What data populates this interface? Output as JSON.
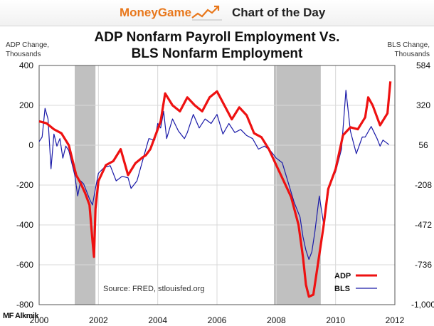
{
  "header": {
    "brand": "MoneyGame",
    "brand_logo_icon": "rising-chart-line-icon",
    "section": "Chart of the Day"
  },
  "watermark": "MF Alkmik",
  "chart_data": {
    "type": "line",
    "title_line1": "ADP Nonfarm Payroll Employment Vs.",
    "title_line2": "BLS Nonfarm Employment",
    "ylabel_left": [
      "ADP Change,",
      "Thousands"
    ],
    "ylabel_right": [
      "BLS Change,",
      "Thousands"
    ],
    "source": "Source: FRED, stlouisfed.org",
    "x_range": [
      2000.0,
      2012.0
    ],
    "x_ticks": [
      "2000",
      "2002",
      "2004",
      "2006",
      "2008",
      "2010",
      "2012"
    ],
    "ylim_left": [
      -800,
      400
    ],
    "yticks_left": [
      "400",
      "200",
      "0",
      "-200",
      "-400",
      "-600",
      "-800"
    ],
    "ylim_right": [
      -1000,
      584
    ],
    "yticks_right": [
      "584",
      "320",
      "56",
      "-208",
      "-472",
      "-736",
      "-1,000"
    ],
    "grid": true,
    "legend_position": "bottom-right",
    "recessions": [
      [
        2001.2,
        2001.9
      ],
      [
        2007.92,
        2009.5
      ]
    ],
    "colors": {
      "adp": "#ee1111",
      "bls": "#1a1aa8",
      "recession": "#c0c0c0",
      "brand": "#e8771b"
    },
    "series": [
      {
        "name": "ADP",
        "axis": "left",
        "x": [
          2000.0,
          2000.25,
          2000.5,
          2000.75,
          2001.0,
          2001.25,
          2001.4,
          2001.55,
          2001.7,
          2001.8,
          2001.85,
          2001.9,
          2002.0,
          2002.25,
          2002.5,
          2002.75,
          2003.0,
          2003.25,
          2003.5,
          2003.6,
          2003.75,
          2004.0,
          2004.1,
          2004.25,
          2004.5,
          2004.75,
          2005.0,
          2005.25,
          2005.5,
          2005.75,
          2006.0,
          2006.25,
          2006.5,
          2006.75,
          2007.0,
          2007.25,
          2007.5,
          2007.75,
          2008.0,
          2008.25,
          2008.5,
          2008.75,
          2008.9,
          2009.0,
          2009.1,
          2009.25,
          2009.4,
          2009.6,
          2009.75,
          2010.0,
          2010.25,
          2010.5,
          2010.75,
          2011.0,
          2011.1,
          2011.25,
          2011.5,
          2011.75,
          2011.85
        ],
        "y": [
          120,
          110,
          80,
          60,
          0,
          -150,
          -190,
          -240,
          -300,
          -480,
          -560,
          -320,
          -180,
          -100,
          -80,
          -20,
          -150,
          -90,
          -60,
          -50,
          -20,
          80,
          120,
          260,
          200,
          170,
          240,
          200,
          170,
          240,
          270,
          200,
          130,
          190,
          150,
          60,
          40,
          -20,
          -100,
          -180,
          -260,
          -400,
          -560,
          -700,
          -760,
          -750,
          -600,
          -400,
          -220,
          -120,
          50,
          90,
          80,
          140,
          240,
          200,
          100,
          160,
          320
        ]
      },
      {
        "name": "BLS",
        "axis": "right",
        "x": [
          2000.0,
          2000.1,
          2000.2,
          2000.3,
          2000.4,
          2000.5,
          2000.6,
          2000.7,
          2000.8,
          2000.9,
          2001.0,
          2001.1,
          2001.2,
          2001.3,
          2001.4,
          2001.5,
          2001.6,
          2001.7,
          2001.8,
          2001.9,
          2002.0,
          2002.2,
          2002.4,
          2002.6,
          2002.8,
          2003.0,
          2003.1,
          2003.3,
          2003.5,
          2003.7,
          2003.9,
          2004.0,
          2004.1,
          2004.2,
          2004.3,
          2004.5,
          2004.7,
          2004.9,
          2005.0,
          2005.2,
          2005.4,
          2005.6,
          2005.8,
          2006.0,
          2006.2,
          2006.4,
          2006.6,
          2006.8,
          2007.0,
          2007.2,
          2007.4,
          2007.6,
          2007.8,
          2008.0,
          2008.2,
          2008.4,
          2008.6,
          2008.8,
          2008.9,
          2009.0,
          2009.1,
          2009.2,
          2009.3,
          2009.45,
          2009.6,
          2009.8,
          2010.0,
          2010.2,
          2010.35,
          2010.5,
          2010.7,
          2010.9,
          2011.0,
          2011.2,
          2011.4,
          2011.5,
          2011.6,
          2011.8
        ],
        "y": [
          80,
          110,
          300,
          230,
          -100,
          130,
          50,
          100,
          -30,
          50,
          20,
          -60,
          -140,
          -280,
          -180,
          -200,
          -250,
          -300,
          -340,
          -230,
          -130,
          -90,
          -80,
          -180,
          -150,
          -160,
          -230,
          -180,
          -40,
          100,
          90,
          200,
          170,
          280,
          100,
          230,
          150,
          100,
          140,
          260,
          170,
          230,
          200,
          260,
          130,
          200,
          140,
          160,
          120,
          100,
          30,
          50,
          20,
          -30,
          -60,
          -190,
          -320,
          -420,
          -550,
          -640,
          -700,
          -650,
          -520,
          -280,
          -470,
          -200,
          -120,
          30,
          420,
          150,
          0,
          110,
          110,
          180,
          100,
          50,
          90,
          60
        ]
      }
    ]
  }
}
